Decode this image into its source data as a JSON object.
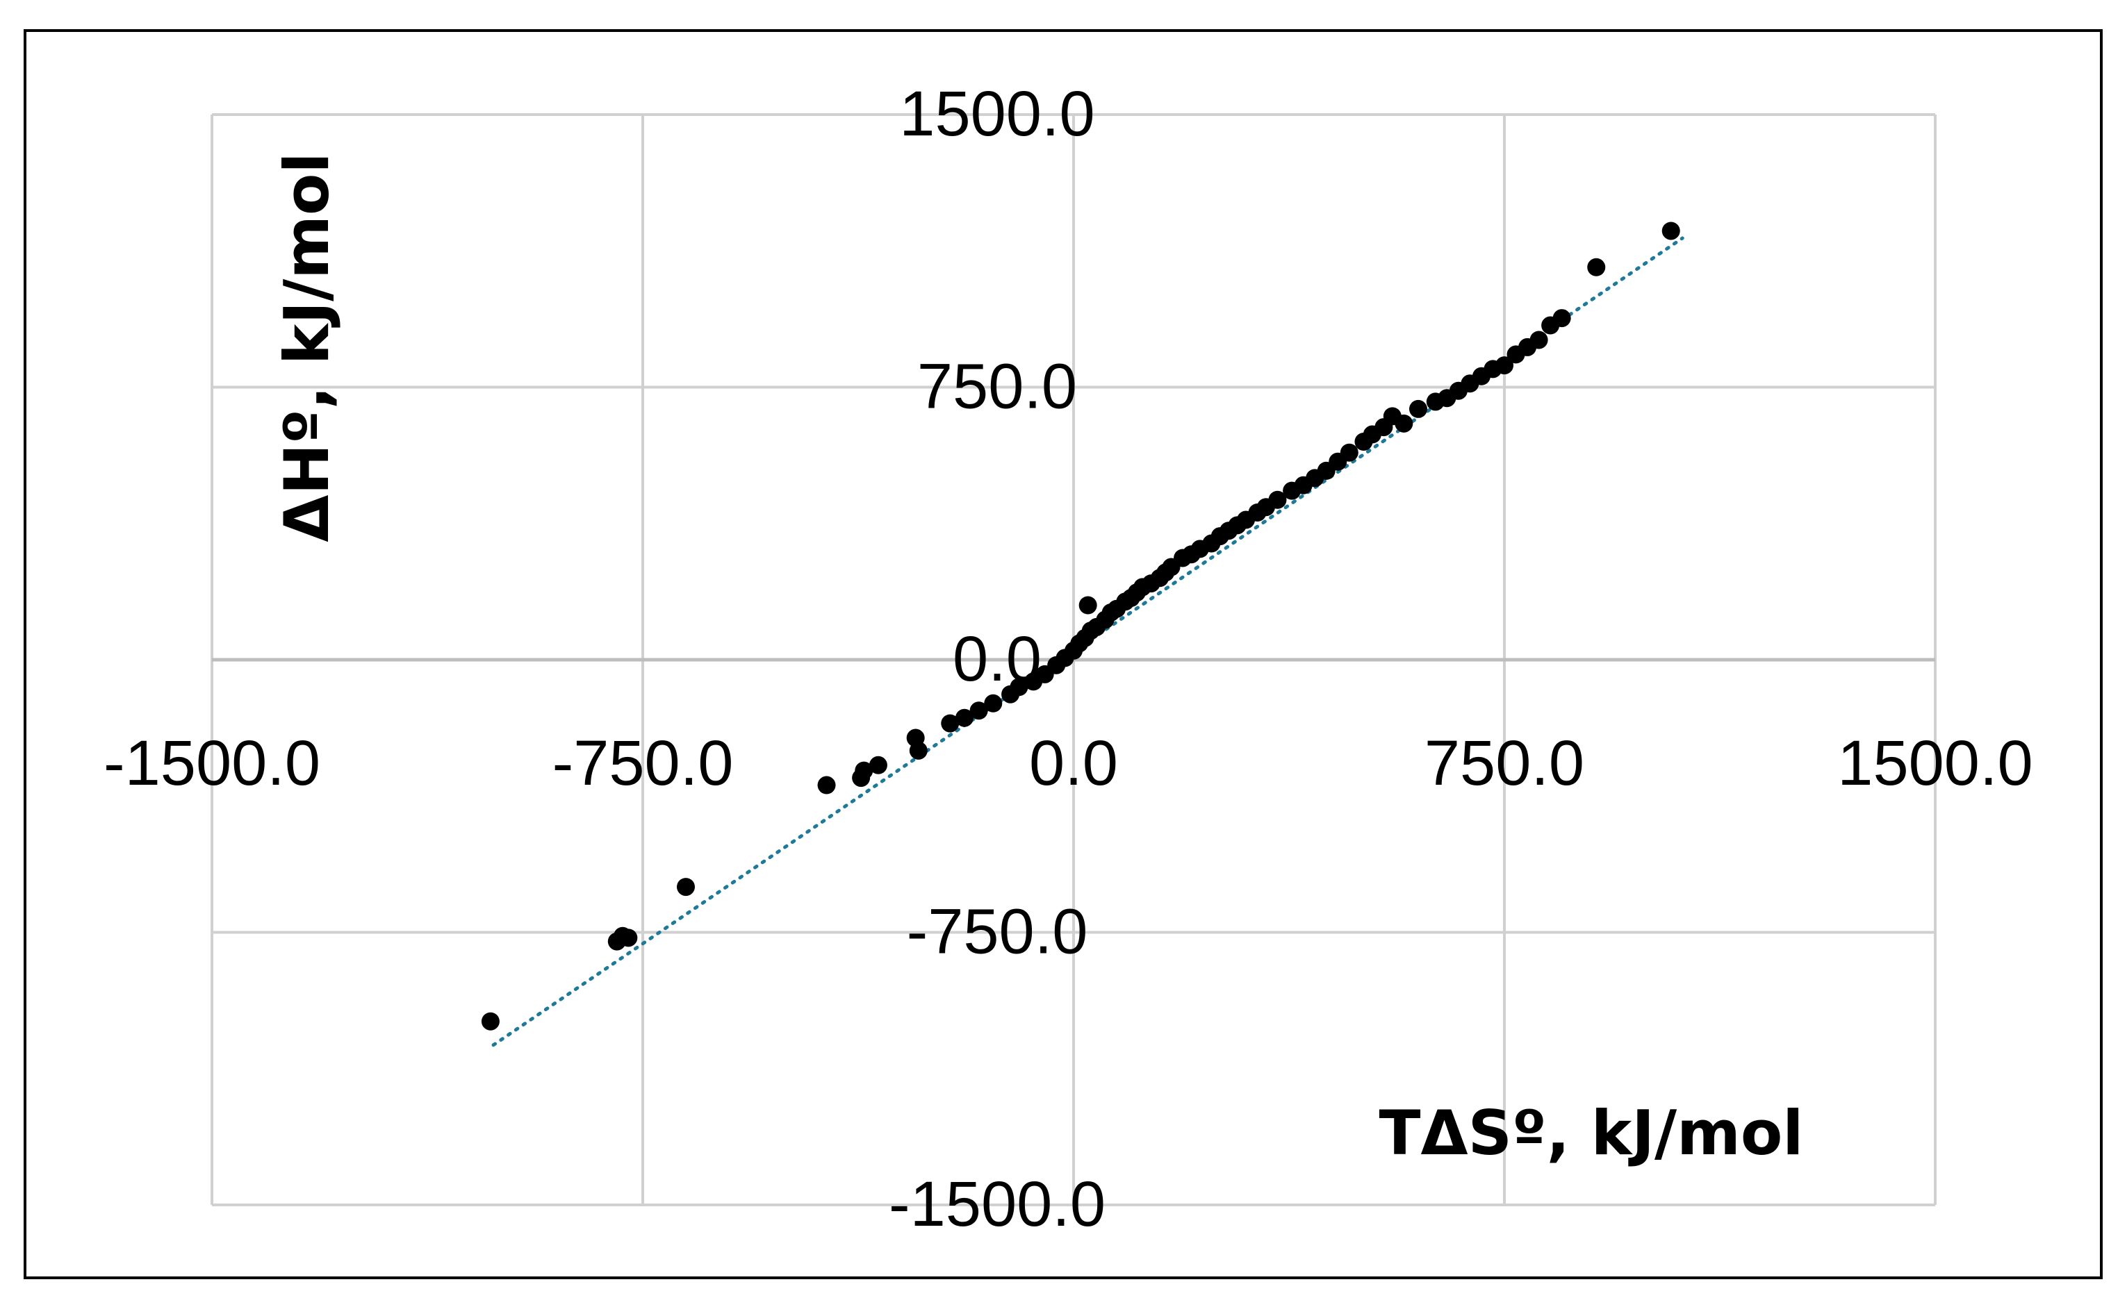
{
  "chart_data": {
    "type": "scatter",
    "title": "",
    "xlabel": "TΔSº, kJ/mol",
    "ylabel": "ΔHº, kJ/mol",
    "xlim": [
      -1500,
      1500
    ],
    "ylim": [
      -1500,
      1500
    ],
    "x_ticks": [
      "-1500.0",
      "-750.0",
      "0.0",
      "750.0",
      "1500.0"
    ],
    "y_ticks": [
      "1500.0",
      "750.0",
      "0.0",
      "-750.0",
      "-1500.0"
    ],
    "x_tick_values": [
      -1500,
      -750,
      0,
      750,
      1500
    ],
    "y_tick_values": [
      1500,
      750,
      0,
      -750,
      -1500
    ],
    "grid": true,
    "colors": {
      "points": "#000000",
      "trendline": "#1f7a99",
      "grid": "#d0d0d0"
    },
    "series": [
      {
        "values": [
          [
            -1015,
            -995
          ],
          [
            -795,
            -775
          ],
          [
            -785,
            -760
          ],
          [
            -775,
            -765
          ],
          [
            -675,
            -625
          ],
          [
            -430,
            -345
          ],
          [
            -370,
            -325
          ],
          [
            -365,
            -305
          ],
          [
            -340,
            -290
          ],
          [
            -270,
            -250
          ],
          [
            -275,
            -215
          ],
          [
            -215,
            -175
          ],
          [
            -190,
            -160
          ],
          [
            -165,
            -140
          ],
          [
            -140,
            -120
          ],
          [
            -110,
            -95
          ],
          [
            -95,
            -75
          ],
          [
            -70,
            -60
          ],
          [
            -50,
            -40
          ],
          [
            -30,
            -15
          ],
          [
            -15,
            5
          ],
          [
            0,
            25
          ],
          [
            10,
            45
          ],
          [
            20,
            60
          ],
          [
            30,
            80
          ],
          [
            40,
            90
          ],
          [
            55,
            110
          ],
          [
            65,
            130
          ],
          [
            75,
            140
          ],
          [
            25,
            150
          ],
          [
            90,
            160
          ],
          [
            100,
            170
          ],
          [
            110,
            185
          ],
          [
            120,
            200
          ],
          [
            135,
            210
          ],
          [
            150,
            225
          ],
          [
            160,
            240
          ],
          [
            170,
            255
          ],
          [
            190,
            280
          ],
          [
            205,
            290
          ],
          [
            220,
            305
          ],
          [
            240,
            320
          ],
          [
            255,
            340
          ],
          [
            270,
            355
          ],
          [
            285,
            370
          ],
          [
            300,
            385
          ],
          [
            320,
            405
          ],
          [
            335,
            420
          ],
          [
            355,
            440
          ],
          [
            380,
            465
          ],
          [
            400,
            480
          ],
          [
            420,
            500
          ],
          [
            440,
            520
          ],
          [
            460,
            545
          ],
          [
            480,
            570
          ],
          [
            505,
            600
          ],
          [
            520,
            620
          ],
          [
            540,
            640
          ],
          [
            555,
            670
          ],
          [
            575,
            650
          ],
          [
            600,
            690
          ],
          [
            630,
            710
          ],
          [
            650,
            720
          ],
          [
            670,
            740
          ],
          [
            690,
            760
          ],
          [
            710,
            780
          ],
          [
            730,
            800
          ],
          [
            750,
            810
          ],
          [
            770,
            840
          ],
          [
            790,
            860
          ],
          [
            810,
            880
          ],
          [
            830,
            920
          ],
          [
            850,
            940
          ],
          [
            910,
            1080
          ],
          [
            1040,
            1180
          ]
        ]
      }
    ],
    "trendline": {
      "style": "dotted",
      "from": [
        -1010,
        -1060
      ],
      "to": [
        1060,
        1160
      ]
    }
  }
}
